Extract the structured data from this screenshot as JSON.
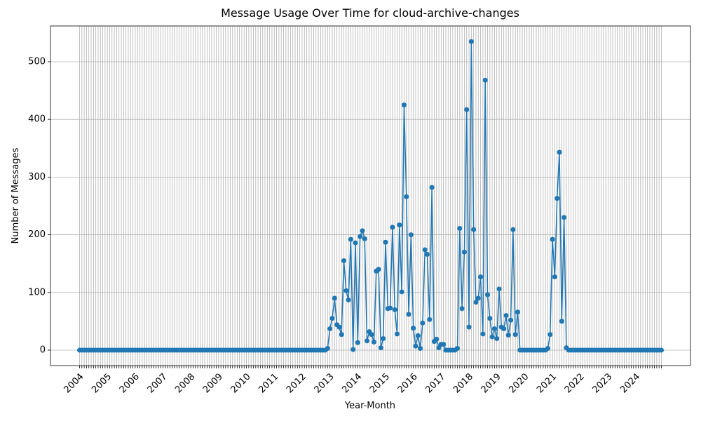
{
  "chart_data": {
    "type": "line",
    "title": "Message Usage Over Time for cloud-archive-changes",
    "x_label": "Year-Month",
    "y_label": "Number of Messages",
    "categories": [
      "2004",
      null,
      null,
      null,
      null,
      null,
      null,
      null,
      null,
      null,
      null,
      null,
      "2005",
      null,
      null,
      null,
      null,
      null,
      null,
      null,
      null,
      null,
      null,
      null,
      "2006",
      null,
      null,
      null,
      null,
      null,
      null,
      null,
      null,
      null,
      null,
      null,
      "2007",
      null,
      null,
      null,
      null,
      null,
      null,
      null,
      null,
      null,
      null,
      null,
      "2008",
      null,
      null,
      null,
      null,
      null,
      null,
      null,
      null,
      null,
      null,
      null,
      "2009",
      null,
      null,
      null,
      null,
      null,
      null,
      null,
      null,
      null,
      null,
      null,
      "2010",
      null,
      null,
      null,
      null,
      null,
      null,
      null,
      null,
      null,
      null,
      null,
      "2011",
      null,
      null,
      null,
      null,
      null,
      null,
      null,
      null,
      null,
      null,
      null,
      "2012",
      null,
      null,
      null,
      null,
      null,
      null,
      null,
      null,
      null,
      null,
      null,
      "2013",
      null,
      null,
      null,
      null,
      null,
      null,
      null,
      null,
      null,
      null,
      null,
      "2014",
      null,
      null,
      null,
      null,
      null,
      null,
      null,
      null,
      null,
      null,
      null,
      "2015",
      null,
      null,
      null,
      null,
      null,
      null,
      null,
      null,
      null,
      null,
      null,
      "2016",
      null,
      null,
      null,
      null,
      null,
      null,
      null,
      null,
      null,
      null,
      null,
      "2017",
      null,
      null,
      null,
      null,
      null,
      null,
      null,
      null,
      null,
      null,
      null,
      "2018",
      null,
      null,
      null,
      null,
      null,
      null,
      null,
      null,
      null,
      null,
      null,
      "2019",
      null,
      null,
      null,
      null,
      null,
      null,
      null,
      null,
      null,
      null,
      null,
      "2020",
      null,
      null,
      null,
      null,
      null,
      null,
      null,
      null,
      null,
      null,
      null,
      "2021",
      null,
      null,
      null,
      null,
      null,
      null,
      null,
      null,
      null,
      null,
      null,
      "2022",
      null,
      null,
      null,
      null,
      null,
      null,
      null,
      null,
      null,
      null,
      null,
      "2023",
      null,
      null,
      null,
      null,
      null,
      null,
      null,
      null,
      null,
      null,
      null,
      "2024",
      null,
      null,
      null,
      null,
      null,
      null,
      null,
      null,
      null,
      null,
      null
    ],
    "values": [
      0,
      0,
      0,
      0,
      0,
      0,
      0,
      0,
      0,
      0,
      0,
      0,
      0,
      0,
      0,
      0,
      0,
      0,
      0,
      0,
      0,
      0,
      0,
      0,
      0,
      0,
      0,
      0,
      0,
      0,
      0,
      0,
      0,
      0,
      0,
      0,
      0,
      0,
      0,
      0,
      0,
      0,
      0,
      0,
      0,
      0,
      0,
      0,
      0,
      0,
      0,
      0,
      0,
      0,
      0,
      0,
      0,
      0,
      0,
      0,
      0,
      0,
      0,
      0,
      0,
      0,
      0,
      0,
      0,
      0,
      0,
      0,
      0,
      0,
      0,
      0,
      0,
      0,
      0,
      0,
      0,
      0,
      0,
      0,
      0,
      0,
      0,
      0,
      0,
      0,
      0,
      0,
      0,
      0,
      0,
      0,
      0,
      0,
      0,
      0,
      0,
      0,
      0,
      0,
      0,
      0,
      0,
      3,
      37,
      55,
      90,
      44,
      40,
      27,
      155,
      103,
      87,
      192,
      1,
      186,
      13,
      197,
      207,
      193,
      16,
      32,
      27,
      14,
      137,
      140,
      4,
      20,
      187,
      72,
      73,
      213,
      70,
      28,
      217,
      101,
      425,
      266,
      62,
      200,
      38,
      7,
      25,
      3,
      47,
      174,
      166,
      53,
      282,
      15,
      19,
      4,
      10,
      10,
      0,
      0,
      0,
      0,
      0,
      3,
      211,
      72,
      170,
      417,
      40,
      535,
      209,
      83,
      90,
      127,
      28,
      468,
      96,
      55,
      23,
      37,
      20,
      106,
      40,
      37,
      60,
      26,
      52,
      209,
      27,
      66,
      0,
      0,
      0,
      0,
      0,
      0,
      0,
      0,
      0,
      0,
      0,
      0,
      3,
      27,
      192,
      127,
      263,
      343,
      50,
      230,
      4,
      0,
      0,
      0,
      0,
      0,
      0,
      0,
      0,
      0,
      0,
      0,
      0,
      0,
      0,
      0,
      0,
      0,
      0,
      0,
      0,
      0,
      0,
      0,
      0,
      0,
      0,
      0,
      0,
      0,
      0,
      0,
      0,
      0,
      0,
      0,
      0,
      0,
      0,
      0,
      0,
      0
    ],
    "color": "#1f77b4",
    "marker": "circle",
    "ylim": [
      -26.8,
      562
    ],
    "yticks": [
      0,
      100,
      200,
      300,
      400,
      500
    ],
    "grid": true
  }
}
